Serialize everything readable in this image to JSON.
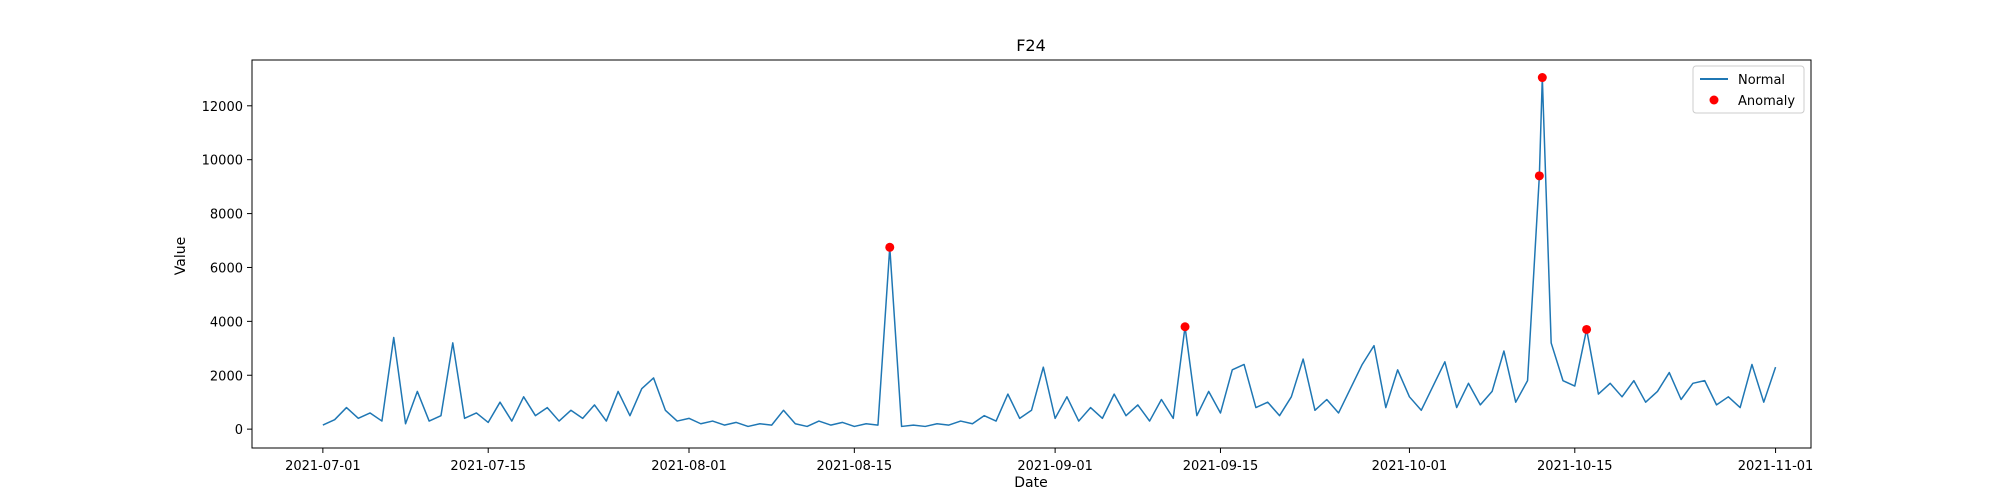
{
  "chart_data": {
    "type": "line",
    "title": "F24",
    "xlabel": "Date",
    "ylabel": "Value",
    "x_range": [
      "2021-06-25",
      "2021-11-04"
    ],
    "ylim": [
      -700,
      13700
    ],
    "x_ticks": [
      "2021-07-01",
      "2021-07-15",
      "2021-08-01",
      "2021-08-15",
      "2021-09-01",
      "2021-09-15",
      "2021-10-01",
      "2021-10-15",
      "2021-11-01"
    ],
    "y_ticks": [
      0,
      2000,
      4000,
      6000,
      8000,
      10000,
      12000
    ],
    "grid": false,
    "legend_position": "top-right",
    "colors": {
      "normal": "#1f77b4",
      "anomaly": "#ff0000"
    },
    "series": [
      {
        "name": "Normal",
        "kind": "line",
        "points": [
          [
            "2021-07-01",
            150
          ],
          [
            "2021-07-02",
            350
          ],
          [
            "2021-07-03",
            800
          ],
          [
            "2021-07-04",
            400
          ],
          [
            "2021-07-05",
            600
          ],
          [
            "2021-07-06",
            300
          ],
          [
            "2021-07-07",
            3400
          ],
          [
            "2021-07-08",
            200
          ],
          [
            "2021-07-09",
            1400
          ],
          [
            "2021-07-10",
            300
          ],
          [
            "2021-07-11",
            500
          ],
          [
            "2021-07-12",
            3200
          ],
          [
            "2021-07-13",
            400
          ],
          [
            "2021-07-14",
            600
          ],
          [
            "2021-07-15",
            250
          ],
          [
            "2021-07-16",
            1000
          ],
          [
            "2021-07-17",
            300
          ],
          [
            "2021-07-18",
            1200
          ],
          [
            "2021-07-19",
            500
          ],
          [
            "2021-07-20",
            800
          ],
          [
            "2021-07-21",
            300
          ],
          [
            "2021-07-22",
            700
          ],
          [
            "2021-07-23",
            400
          ],
          [
            "2021-07-24",
            900
          ],
          [
            "2021-07-25",
            300
          ],
          [
            "2021-07-26",
            1400
          ],
          [
            "2021-07-27",
            500
          ],
          [
            "2021-07-28",
            1500
          ],
          [
            "2021-07-29",
            1900
          ],
          [
            "2021-07-30",
            700
          ],
          [
            "2021-07-31",
            300
          ],
          [
            "2021-08-01",
            400
          ],
          [
            "2021-08-02",
            200
          ],
          [
            "2021-08-03",
            300
          ],
          [
            "2021-08-04",
            150
          ],
          [
            "2021-08-05",
            250
          ],
          [
            "2021-08-06",
            100
          ],
          [
            "2021-08-07",
            200
          ],
          [
            "2021-08-08",
            150
          ],
          [
            "2021-08-09",
            700
          ],
          [
            "2021-08-10",
            200
          ],
          [
            "2021-08-11",
            100
          ],
          [
            "2021-08-12",
            300
          ],
          [
            "2021-08-13",
            150
          ],
          [
            "2021-08-14",
            250
          ],
          [
            "2021-08-15",
            100
          ],
          [
            "2021-08-16",
            200
          ],
          [
            "2021-08-17",
            150
          ],
          [
            "2021-08-18",
            6750
          ],
          [
            "2021-08-19",
            100
          ],
          [
            "2021-08-20",
            150
          ],
          [
            "2021-08-21",
            100
          ],
          [
            "2021-08-22",
            200
          ],
          [
            "2021-08-23",
            150
          ],
          [
            "2021-08-24",
            300
          ],
          [
            "2021-08-25",
            200
          ],
          [
            "2021-08-26",
            500
          ],
          [
            "2021-08-27",
            300
          ],
          [
            "2021-08-28",
            1300
          ],
          [
            "2021-08-29",
            400
          ],
          [
            "2021-08-30",
            700
          ],
          [
            "2021-08-31",
            2300
          ],
          [
            "2021-09-01",
            400
          ],
          [
            "2021-09-02",
            1200
          ],
          [
            "2021-09-03",
            300
          ],
          [
            "2021-09-04",
            800
          ],
          [
            "2021-09-05",
            400
          ],
          [
            "2021-09-06",
            1300
          ],
          [
            "2021-09-07",
            500
          ],
          [
            "2021-09-08",
            900
          ],
          [
            "2021-09-09",
            300
          ],
          [
            "2021-09-10",
            1100
          ],
          [
            "2021-09-11",
            400
          ],
          [
            "2021-09-12",
            3800
          ],
          [
            "2021-09-13",
            500
          ],
          [
            "2021-09-14",
            1400
          ],
          [
            "2021-09-15",
            600
          ],
          [
            "2021-09-16",
            2200
          ],
          [
            "2021-09-17",
            2400
          ],
          [
            "2021-09-18",
            800
          ],
          [
            "2021-09-19",
            1000
          ],
          [
            "2021-09-20",
            500
          ],
          [
            "2021-09-21",
            1200
          ],
          [
            "2021-09-22",
            2600
          ],
          [
            "2021-09-23",
            700
          ],
          [
            "2021-09-24",
            1100
          ],
          [
            "2021-09-25",
            600
          ],
          [
            "2021-09-26",
            1500
          ],
          [
            "2021-09-27",
            2400
          ],
          [
            "2021-09-28",
            3100
          ],
          [
            "2021-09-29",
            800
          ],
          [
            "2021-09-30",
            2200
          ],
          [
            "2021-10-01",
            1200
          ],
          [
            "2021-10-02",
            700
          ],
          [
            "2021-10-03",
            1600
          ],
          [
            "2021-10-04",
            2500
          ],
          [
            "2021-10-05",
            800
          ],
          [
            "2021-10-06",
            1700
          ],
          [
            "2021-10-07",
            900
          ],
          [
            "2021-10-08",
            1400
          ],
          [
            "2021-10-09",
            2900
          ],
          [
            "2021-10-10",
            1000
          ],
          [
            "2021-10-11",
            1800
          ],
          [
            "2021-10-12",
            9400
          ],
          [
            "2021-10-12T06",
            13050
          ],
          [
            "2021-10-13",
            3200
          ],
          [
            "2021-10-14",
            1800
          ],
          [
            "2021-10-15",
            1600
          ],
          [
            "2021-10-16",
            3700
          ],
          [
            "2021-10-17",
            1300
          ],
          [
            "2021-10-18",
            1700
          ],
          [
            "2021-10-19",
            1200
          ],
          [
            "2021-10-20",
            1800
          ],
          [
            "2021-10-21",
            1000
          ],
          [
            "2021-10-22",
            1400
          ],
          [
            "2021-10-23",
            2100
          ],
          [
            "2021-10-24",
            1100
          ],
          [
            "2021-10-25",
            1700
          ],
          [
            "2021-10-26",
            1800
          ],
          [
            "2021-10-27",
            900
          ],
          [
            "2021-10-28",
            1200
          ],
          [
            "2021-10-29",
            800
          ],
          [
            "2021-10-30",
            2400
          ],
          [
            "2021-10-31",
            1000
          ],
          [
            "2021-11-01",
            2300
          ]
        ]
      },
      {
        "name": "Anomaly",
        "kind": "scatter",
        "points": [
          [
            "2021-08-18",
            6750
          ],
          [
            "2021-09-12",
            3800
          ],
          [
            "2021-10-12",
            9400
          ],
          [
            "2021-10-12T06",
            13050
          ],
          [
            "2021-10-16",
            3700
          ]
        ]
      }
    ]
  }
}
